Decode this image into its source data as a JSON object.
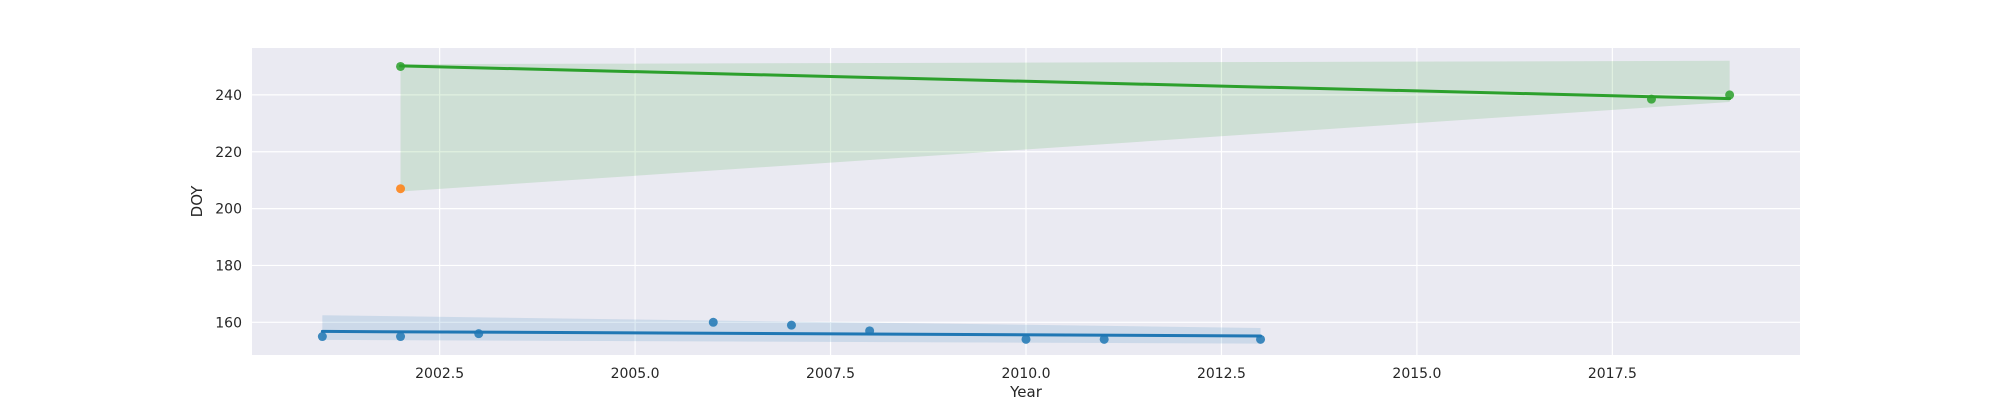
{
  "chart_data": {
    "type": "scatter",
    "xlabel": "Year",
    "ylabel": "DOY",
    "xlim": [
      2000.1,
      2019.9
    ],
    "ylim": [
      148.5,
      256.5
    ],
    "xticks": [
      2002.5,
      2005.0,
      2007.5,
      2010.0,
      2012.5,
      2015.0,
      2017.5
    ],
    "xtick_labels": [
      "2002.5",
      "2005.0",
      "2007.5",
      "2010.0",
      "2012.5",
      "2015.0",
      "2017.5"
    ],
    "yticks": [
      160,
      180,
      200,
      220,
      240
    ],
    "ytick_labels": [
      "160",
      "180",
      "200",
      "220",
      "240"
    ],
    "grid": true,
    "legend": "none",
    "background_color": "#eaeaf2",
    "series": [
      {
        "color": "#1f77b4",
        "points": [
          {
            "x": 2001,
            "y": 155
          },
          {
            "x": 2002,
            "y": 155
          },
          {
            "x": 2003,
            "y": 156
          },
          {
            "x": 2006,
            "y": 160
          },
          {
            "x": 2007,
            "y": 159
          },
          {
            "x": 2008,
            "y": 157
          },
          {
            "x": 2010,
            "y": 154
          },
          {
            "x": 2011,
            "y": 154
          },
          {
            "x": 2013,
            "y": 154
          }
        ],
        "regression": {
          "x": [
            2001,
            2013
          ],
          "y": [
            156.8,
            155.2
          ]
        },
        "confidence_band": {
          "x": [
            2001,
            2013
          ],
          "upper": [
            162.5,
            158.0
          ],
          "lower": [
            153.8,
            152.5
          ]
        }
      },
      {
        "color": "#ff7f0e",
        "points": [
          {
            "x": 2002,
            "y": 207
          }
        ]
      },
      {
        "color": "#2ca02c",
        "points": [
          {
            "x": 2002,
            "y": 250
          },
          {
            "x": 2018,
            "y": 238.5
          },
          {
            "x": 2019,
            "y": 240
          }
        ],
        "regression": {
          "x": [
            2002,
            2019
          ],
          "y": [
            250.2,
            238.7
          ]
        },
        "confidence_band": {
          "x": [
            2002,
            2019
          ],
          "upper": [
            250.8,
            252.0
          ],
          "lower": [
            206.0,
            237.5
          ]
        }
      }
    ]
  }
}
